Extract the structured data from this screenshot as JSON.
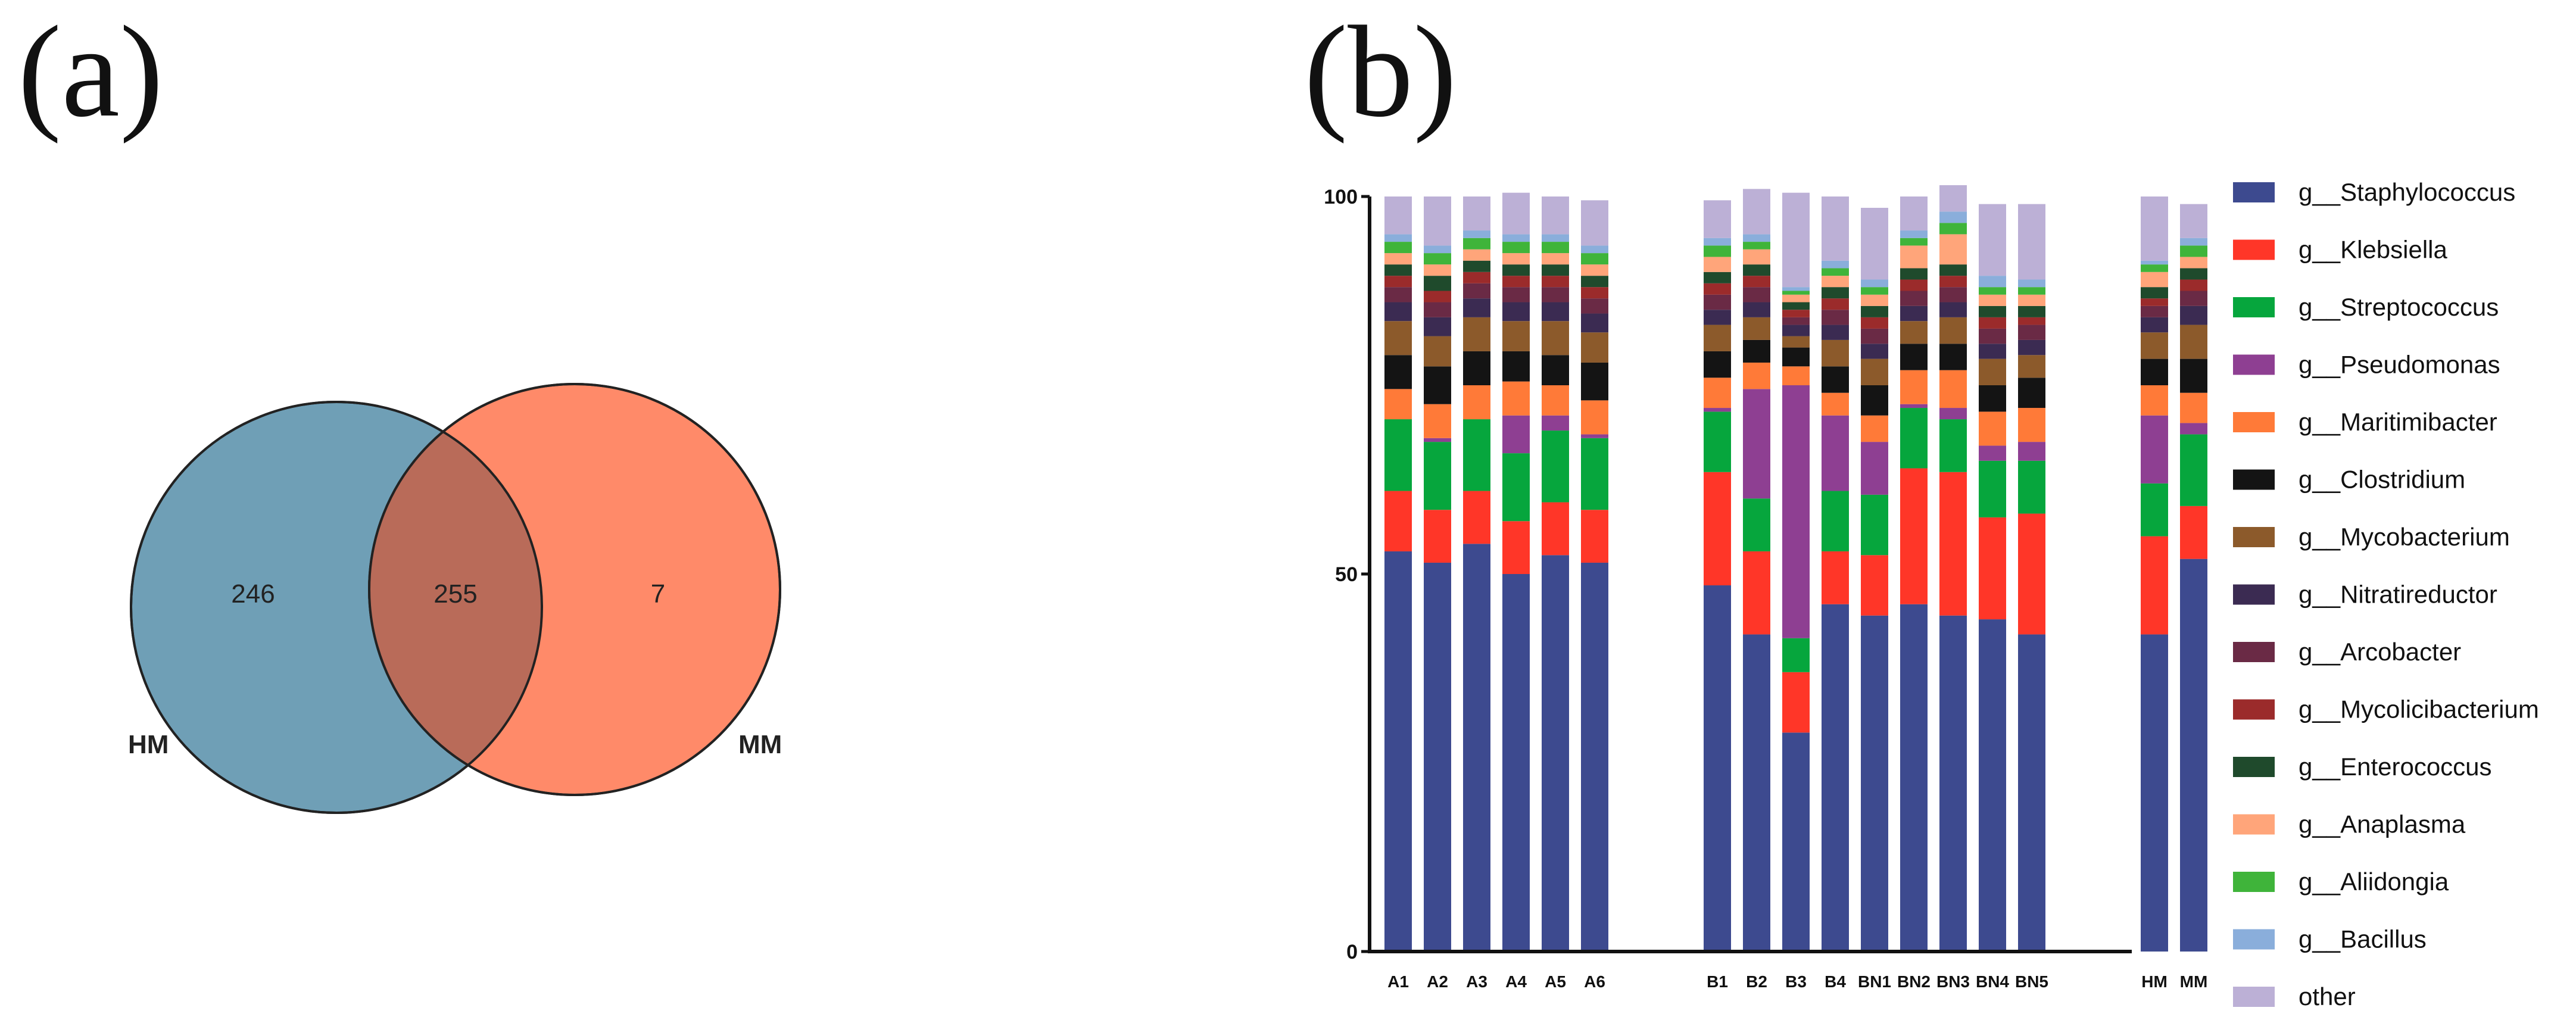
{
  "panels": {
    "a_label": "(a)",
    "b_label": "(b)"
  },
  "venn": {
    "left_set": "HM",
    "right_set": "MM",
    "left_only": "246",
    "overlap": "255",
    "right_only": "7",
    "left_color": "#6f9fb6",
    "right_color": "#ff8a69",
    "overlap_color": "#b96b59"
  },
  "chart_data": {
    "type": "bar",
    "stacked": true,
    "title": "",
    "xlabel": "",
    "ylabel": "",
    "ylim": [
      0,
      100
    ],
    "yticks": [
      "0",
      "50",
      "100"
    ],
    "categories": [
      "A1",
      "A2",
      "A3",
      "A4",
      "A5",
      "A6",
      "B1",
      "B2",
      "B3",
      "B4",
      "BN1",
      "BN2",
      "BN3",
      "BN4",
      "BN5",
      "HM",
      "MM"
    ],
    "groups": [
      [
        "A1",
        "A2",
        "A3",
        "A4",
        "A5",
        "A6"
      ],
      [
        "B1",
        "B2",
        "B3",
        "B4",
        "BN1",
        "BN2",
        "BN3",
        "BN4",
        "BN5"
      ],
      [
        "HM",
        "MM"
      ]
    ],
    "legend_position": "right",
    "series": [
      {
        "name": "g__Staphylococcus",
        "color": "#3d4a8f",
        "values": [
          53,
          51.5,
          54,
          50,
          52.5,
          51.5,
          48.5,
          42,
          29,
          46,
          44.5,
          46,
          44.5,
          44,
          42,
          42,
          52
        ]
      },
      {
        "name": "g__Klebsiella",
        "color": "#ff3628",
        "values": [
          8,
          7,
          7,
          7,
          7,
          7,
          15,
          11,
          8,
          7,
          8,
          18,
          19,
          13.5,
          16,
          13,
          7
        ]
      },
      {
        "name": "g__Streptococcus",
        "color": "#06a63d",
        "values": [
          9.5,
          9,
          9.5,
          9,
          9.5,
          9.5,
          8,
          7,
          4.5,
          8,
          8,
          8,
          7,
          7.5,
          7,
          7,
          9.5
        ]
      },
      {
        "name": "g__Pseudomonas",
        "color": "#8e3f92",
        "values": [
          0,
          0.5,
          0,
          5,
          2,
          0.5,
          0.5,
          14.5,
          33.5,
          10,
          7,
          0.5,
          1.5,
          2,
          2.5,
          9,
          1.5
        ]
      },
      {
        "name": "g__Maritimibacter",
        "color": "#ff7a38",
        "values": [
          4,
          4.5,
          4.5,
          4.5,
          4,
          4.5,
          4,
          3.5,
          2.5,
          3,
          3.5,
          4.5,
          5,
          4.5,
          4.5,
          4,
          4
        ]
      },
      {
        "name": "g__Clostridium",
        "color": "#141414",
        "values": [
          4.5,
          5,
          4.5,
          4,
          4,
          5,
          3.5,
          3,
          2.5,
          3.5,
          4,
          3.5,
          3.5,
          3.5,
          4,
          3.5,
          4.5
        ]
      },
      {
        "name": "g__Mycobacterium",
        "color": "#8c5a2b",
        "values": [
          4.5,
          4,
          4.5,
          4,
          4.5,
          4,
          3.5,
          3,
          1.5,
          3.5,
          3.5,
          3,
          3.5,
          3.5,
          3,
          3.5,
          4.5
        ]
      },
      {
        "name": "g__Nitratireductor",
        "color": "#3b2b52",
        "values": [
          2.5,
          2.5,
          2.5,
          2.5,
          2.5,
          2.5,
          2,
          2,
          1.5,
          2,
          2,
          2,
          2,
          2,
          2,
          2,
          2.5
        ]
      },
      {
        "name": "g__Arcobacter",
        "color": "#6a2a45",
        "values": [
          2,
          2,
          2,
          2,
          2,
          2,
          2,
          2,
          1,
          2,
          2,
          2,
          2,
          2,
          2,
          1.5,
          2
        ]
      },
      {
        "name": "g__Mycolicibacterium",
        "color": "#9b2b2b",
        "values": [
          1.5,
          1.5,
          1.5,
          1.5,
          1.5,
          1.5,
          1.5,
          1.5,
          1,
          1.5,
          1.5,
          1.5,
          1.5,
          1.5,
          1,
          1,
          1.5
        ]
      },
      {
        "name": "g__Enterococcus",
        "color": "#1f4a2c",
        "values": [
          1.5,
          2,
          1.5,
          1.5,
          1.5,
          1.5,
          1.5,
          1.5,
          1,
          1.5,
          1.5,
          1.5,
          1.5,
          1.5,
          1.5,
          1.5,
          1.5
        ]
      },
      {
        "name": "g__Anaplasma",
        "color": "#ffa57a",
        "values": [
          1.5,
          1.5,
          1.5,
          1.5,
          1.5,
          1.5,
          2,
          2,
          1,
          1.5,
          1.5,
          3,
          4,
          1.5,
          1.5,
          2,
          1.5
        ]
      },
      {
        "name": "g__Aliidongia",
        "color": "#3fb43a",
        "values": [
          1.5,
          1.5,
          1.5,
          1.5,
          1.5,
          1.5,
          1.5,
          1,
          0.5,
          1,
          1,
          1,
          1.5,
          1,
          1,
          1,
          1.5
        ]
      },
      {
        "name": "g__Bacillus",
        "color": "#8aaedb",
        "values": [
          1,
          1,
          1,
          1,
          1,
          1,
          1,
          1,
          0.5,
          1,
          1,
          1,
          1.5,
          1.5,
          1,
          0.5,
          1
        ]
      },
      {
        "name": "other",
        "color": "#bcb0d6",
        "values": [
          5,
          6.5,
          4.5,
          5.5,
          5,
          6,
          5,
          6,
          12.5,
          8.5,
          9.5,
          4.5,
          3.5,
          9.5,
          10,
          8.5,
          4.5
        ]
      }
    ]
  }
}
